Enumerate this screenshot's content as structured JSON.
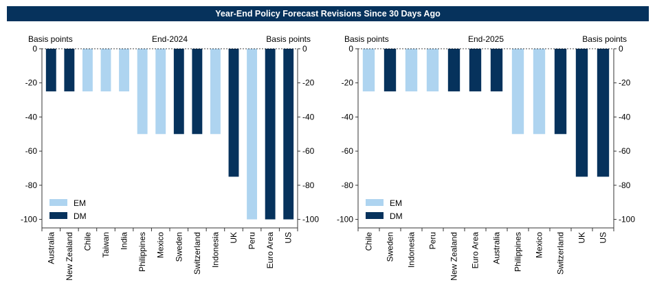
{
  "title": "Year-End Policy Forecast Revisions Since 30 Days Ago",
  "colors": {
    "EM": "#aed4f0",
    "DM": "#06325c",
    "title_bg": "#06325c"
  },
  "chart_data": [
    {
      "type": "bar",
      "title": "End-2024",
      "ylabel_left": "Basis points",
      "ylabel_right": "Basis points",
      "ylim": [
        -105,
        0
      ],
      "yticks": [
        0,
        -20,
        -40,
        -60,
        -80,
        -100
      ],
      "legend": [
        "EM",
        "DM"
      ],
      "legend_position": "lower-left",
      "categories": [
        "Australia",
        "New Zealand",
        "Chile",
        "Taiwan",
        "India",
        "Philippines",
        "Mexico",
        "Sweden",
        "Switzerland",
        "Indonesia",
        "UK",
        "Peru",
        "Euro Area",
        "US"
      ],
      "values": [
        -25,
        -25,
        -25,
        -25,
        -25,
        -50,
        -50,
        -50,
        -50,
        -50,
        -75,
        -100,
        -100,
        -100
      ],
      "groups": [
        "DM",
        "DM",
        "EM",
        "EM",
        "EM",
        "EM",
        "EM",
        "DM",
        "DM",
        "EM",
        "DM",
        "EM",
        "DM",
        "DM"
      ]
    },
    {
      "type": "bar",
      "title": "End-2025",
      "ylabel_left": "Basis points",
      "ylabel_right": "Basis points",
      "ylim": [
        -105,
        0
      ],
      "yticks": [
        0,
        -20,
        -40,
        -60,
        -80,
        -100
      ],
      "legend": [
        "EM",
        "DM"
      ],
      "legend_position": "lower-left",
      "categories": [
        "Chile",
        "Sweden",
        "Indonesia",
        "Peru",
        "New Zealand",
        "Euro Area",
        "Australia",
        "Philippines",
        "Mexico",
        "Switzerland",
        "UK",
        "US"
      ],
      "values": [
        -25,
        -25,
        -25,
        -25,
        -25,
        -25,
        -25,
        -50,
        -50,
        -50,
        -75,
        -75
      ],
      "groups": [
        "EM",
        "DM",
        "EM",
        "EM",
        "DM",
        "DM",
        "DM",
        "EM",
        "EM",
        "DM",
        "DM",
        "DM"
      ]
    }
  ]
}
